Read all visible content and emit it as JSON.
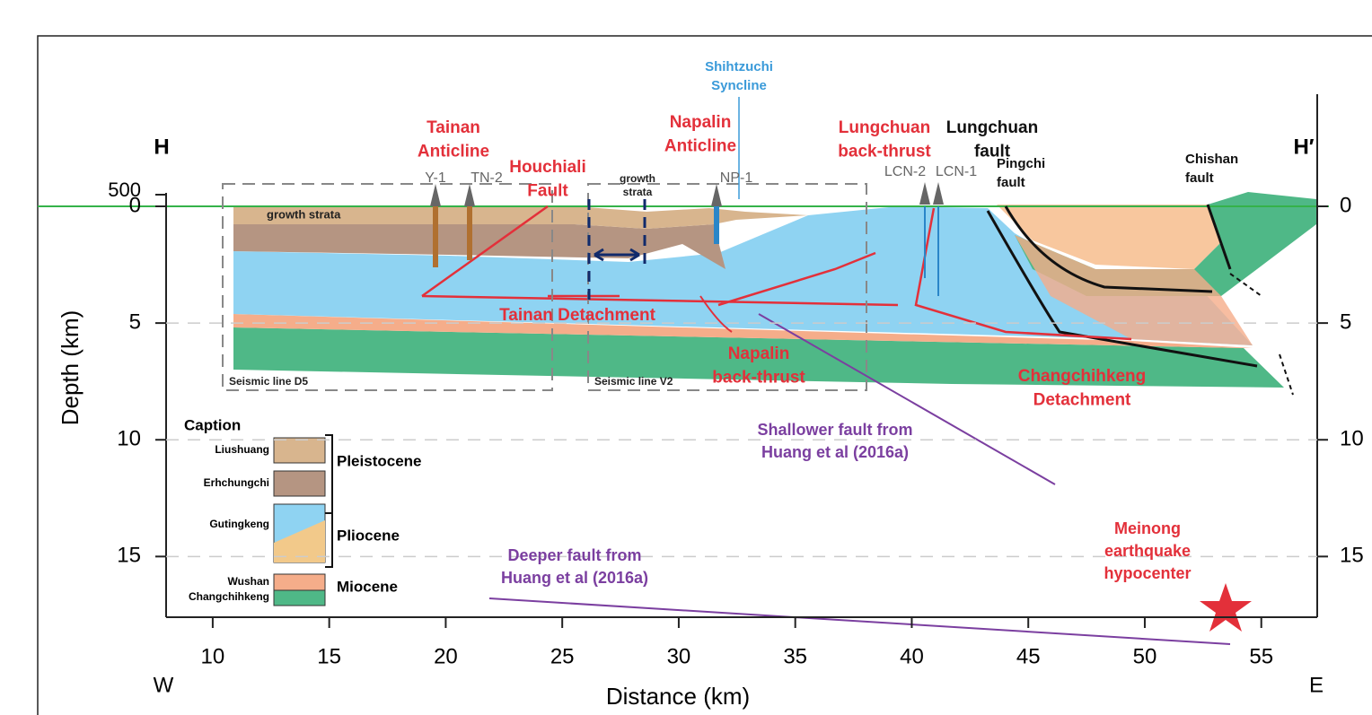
{
  "figure": {
    "section_labels": {
      "start": "H",
      "end": "H′",
      "west": "W",
      "east": "E"
    },
    "x_axis": {
      "title": "Distance (km)",
      "xlim": [
        8,
        57.4
      ],
      "xticks": [
        10,
        15,
        20,
        25,
        30,
        35,
        40,
        45,
        50,
        55
      ]
    },
    "y_axis": {
      "title": "Depth (km)",
      "ylim": [
        0,
        17.6
      ],
      "yticks": [
        0,
        5,
        10,
        15
      ],
      "y2ticks": [
        0,
        5,
        10,
        15
      ],
      "topo_ticks": [
        500
      ]
    },
    "wells": [
      "Y-1",
      "TN-2",
      "NP-1",
      "LCN-2",
      "LCN-1"
    ],
    "annotations": [
      {
        "lines": [
          "Tainan",
          "Anticline"
        ]
      },
      {
        "lines": [
          "Houchiali",
          "Fault"
        ]
      },
      {
        "lines": [
          "Shihtzuchi",
          "Syncline"
        ]
      },
      {
        "lines": [
          "Napalin",
          "Anticline"
        ]
      },
      {
        "lines": [
          "Lungchuan",
          "back-thrust"
        ]
      },
      {
        "lines": [
          "Lungchuan",
          "fault"
        ]
      },
      {
        "lines": [
          "Pingchi",
          "fault"
        ]
      },
      {
        "lines": [
          "Chishan",
          "fault"
        ]
      },
      {
        "lines": [
          "Tainan Detachment"
        ]
      },
      {
        "lines": [
          "Napalin",
          "back-thrust"
        ]
      },
      {
        "lines": [
          "Changchihkeng",
          "Detachment"
        ]
      },
      {
        "lines": [
          "Shallower fault from",
          "Huang et al (2016a)"
        ]
      },
      {
        "lines": [
          "Deeper fault from",
          "Huang et al (2016a)"
        ]
      },
      {
        "lines": [
          "Meinong",
          "earthquake",
          "hypocenter"
        ]
      }
    ],
    "growth_strata_labels": [
      {
        "lines": [
          "growth strata"
        ]
      },
      {
        "lines": [
          "growth",
          "strata"
        ]
      }
    ],
    "seismic_lines": [
      "Seismic line D5",
      "Seismic line V2"
    ],
    "caption": {
      "title": "Caption",
      "units": [
        "Liushuang",
        "Erhchungchi",
        "Gutingkeng",
        "Wushan",
        "Changchihkeng"
      ],
      "epochs": [
        "Pleistocene",
        "Pliocene",
        "Miocene"
      ]
    }
  }
}
